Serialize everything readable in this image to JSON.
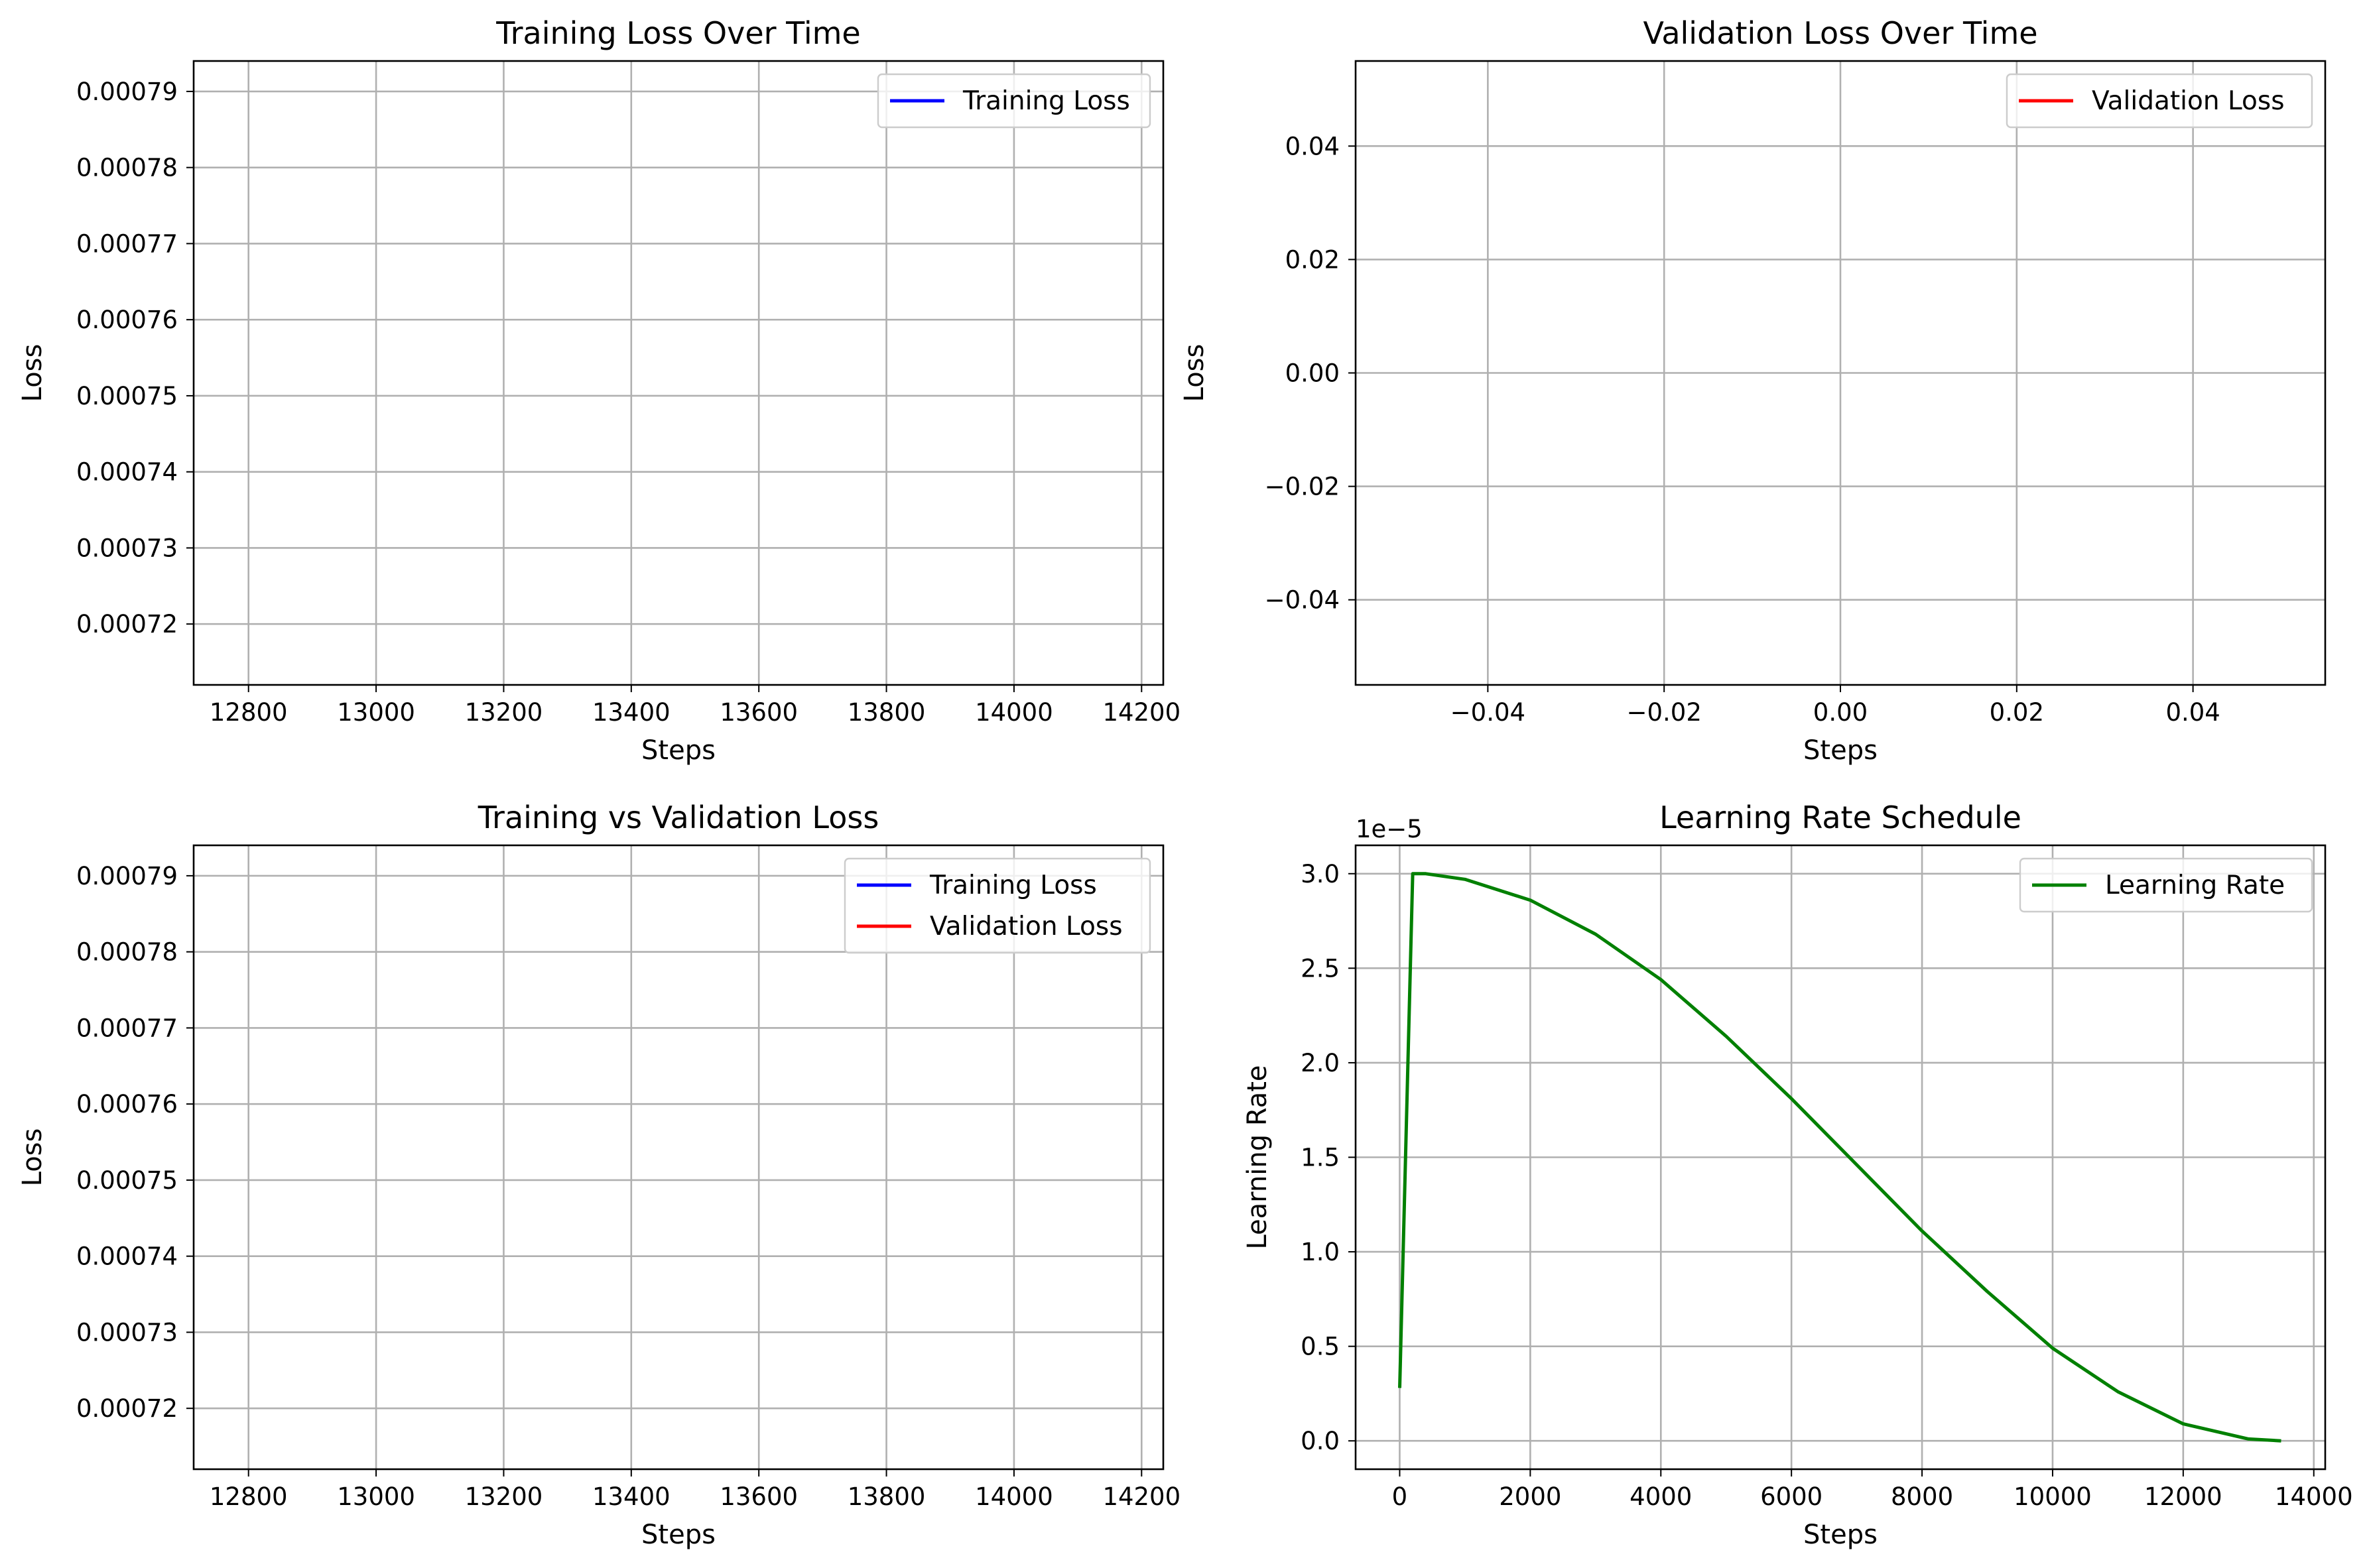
{
  "chart_data": [
    {
      "type": "line",
      "title": "Training Loss Over Time",
      "xlabel": "Steps",
      "ylabel": "Loss",
      "xlim": [
        12714,
        14234
      ],
      "ylim": [
        0.000712,
        0.000794
      ],
      "xticks": [
        12800,
        13000,
        13200,
        13400,
        13600,
        13800,
        14000,
        14200
      ],
      "xtick_labels": [
        "12800",
        "13000",
        "13200",
        "13400",
        "13600",
        "13800",
        "14000",
        "14200"
      ],
      "yticks": [
        0.00072,
        0.00073,
        0.00074,
        0.00075,
        0.00076,
        0.00077,
        0.00078,
        0.00079
      ],
      "ytick_labels": [
        "0.00072",
        "0.00073",
        "0.00074",
        "0.00075",
        "0.00076",
        "0.00077",
        "0.00078",
        "0.00079"
      ],
      "y_offset_label": "",
      "grid": true,
      "legend_position": "upper right",
      "series": [
        {
          "name": "Training Loss",
          "color": "#0000ff",
          "x": [],
          "y": []
        }
      ]
    },
    {
      "type": "line",
      "title": "Validation Loss Over Time",
      "xlabel": "Steps",
      "ylabel": "Loss",
      "xlim": [
        -0.055,
        0.055
      ],
      "ylim": [
        -0.055,
        0.055
      ],
      "xticks": [
        -0.04,
        -0.02,
        0.0,
        0.02,
        0.04
      ],
      "xtick_labels": [
        "−0.04",
        "−0.02",
        "0.00",
        "0.02",
        "0.04"
      ],
      "yticks": [
        -0.04,
        -0.02,
        0.0,
        0.02,
        0.04
      ],
      "ytick_labels": [
        "−0.04",
        "−0.02",
        "0.00",
        "0.02",
        "0.04"
      ],
      "y_offset_label": "",
      "grid": true,
      "legend_position": "upper right",
      "series": [
        {
          "name": "Validation Loss",
          "color": "#ff0000",
          "x": [],
          "y": []
        }
      ]
    },
    {
      "type": "line",
      "title": "Training vs Validation Loss",
      "xlabel": "Steps",
      "ylabel": "Loss",
      "xlim": [
        12714,
        14234
      ],
      "ylim": [
        0.000712,
        0.000794
      ],
      "xticks": [
        12800,
        13000,
        13200,
        13400,
        13600,
        13800,
        14000,
        14200
      ],
      "xtick_labels": [
        "12800",
        "13000",
        "13200",
        "13400",
        "13600",
        "13800",
        "14000",
        "14200"
      ],
      "yticks": [
        0.00072,
        0.00073,
        0.00074,
        0.00075,
        0.00076,
        0.00077,
        0.00078,
        0.00079
      ],
      "ytick_labels": [
        "0.00072",
        "0.00073",
        "0.00074",
        "0.00075",
        "0.00076",
        "0.00077",
        "0.00078",
        "0.00079"
      ],
      "y_offset_label": "",
      "grid": true,
      "legend_position": "upper right",
      "series": [
        {
          "name": "Training Loss",
          "color": "#0000ff",
          "x": [],
          "y": []
        },
        {
          "name": "Validation Loss",
          "color": "#ff0000",
          "x": [],
          "y": []
        }
      ]
    },
    {
      "type": "line",
      "title": "Learning Rate Schedule",
      "xlabel": "Steps",
      "ylabel": "Learning Rate",
      "xlim": [
        -675,
        14175
      ],
      "ylim": [
        -0.15,
        3.15
      ],
      "xticks": [
        0,
        2000,
        4000,
        6000,
        8000,
        10000,
        12000,
        14000
      ],
      "xtick_labels": [
        "0",
        "2000",
        "4000",
        "6000",
        "8000",
        "10000",
        "12000",
        "14000"
      ],
      "yticks": [
        0.0,
        0.5,
        1.0,
        1.5,
        2.0,
        2.5,
        3.0
      ],
      "ytick_labels": [
        "0.0",
        "0.5",
        "1.0",
        "1.5",
        "2.0",
        "2.5",
        "3.0"
      ],
      "y_offset_label": "1e−5",
      "grid": true,
      "legend_position": "upper right",
      "series": [
        {
          "name": "Learning Rate",
          "color": "#008000",
          "x": [
            0,
            200,
            400,
            1000,
            2000,
            3000,
            4000,
            5000,
            6000,
            7000,
            8000,
            9000,
            10000,
            11000,
            12000,
            13000,
            13500
          ],
          "y": [
            0.28,
            3.0,
            3.0,
            2.97,
            2.86,
            2.68,
            2.44,
            2.14,
            1.81,
            1.46,
            1.11,
            0.79,
            0.49,
            0.26,
            0.09,
            0.01,
            0.0
          ]
        }
      ]
    }
  ]
}
